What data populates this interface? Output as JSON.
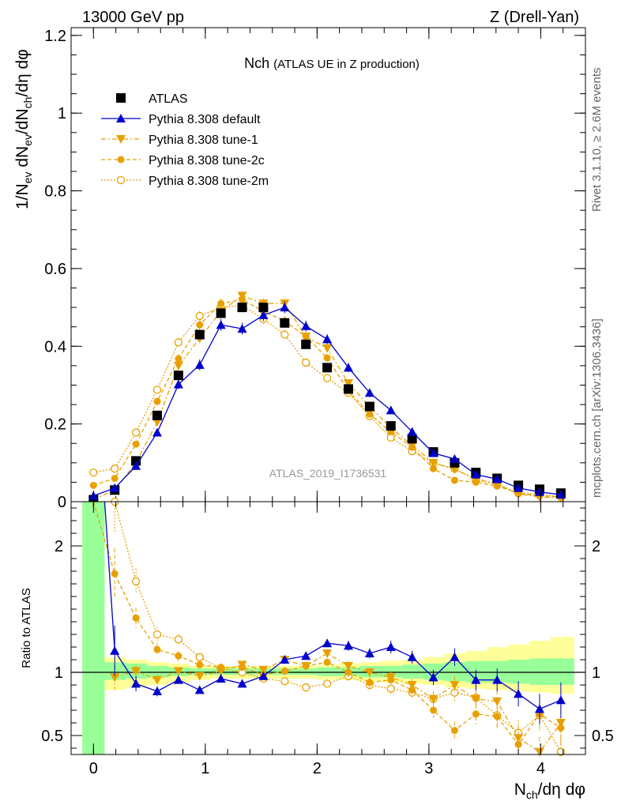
{
  "header": {
    "left": "13000 GeV pp",
    "right": "Z (Drell-Yan)"
  },
  "side_labels": {
    "rivet": "Rivet 3.1.10, ≥ 2.6M events",
    "mcplots": "mcplots.cern.ch [arXiv:1306.3436]"
  },
  "colors": {
    "atlas": "#000000",
    "default": "#0000cc",
    "tunes": "#e8a000",
    "band_inner": "#99ff99",
    "band_outer": "#ffff99"
  },
  "chart_data": [
    {
      "type": "line",
      "title": "Nch",
      "subtitle": "(ATLAS UE in Z production)",
      "watermark": "ATLAS_2019_I1736531",
      "ylabel": {
        "base": "1/N",
        "sub1": "ev",
        "mid": " dN",
        "sub2": "ev",
        "mid2": "/dN",
        "sub3": "ch",
        "tail": "/dη dφ"
      },
      "xlim": [
        -0.2,
        4.4
      ],
      "ylim": [
        0,
        1.22
      ],
      "y_ticks": [
        0,
        0.2,
        0.4,
        0.6,
        0.8,
        1,
        1.2
      ],
      "y_tick_labels": [
        "0",
        "0.2",
        "0.4",
        "0.6",
        "0.8",
        "1",
        "1.2"
      ],
      "x": [
        0.0,
        0.19,
        0.38,
        0.57,
        0.76,
        0.95,
        1.14,
        1.33,
        1.52,
        1.71,
        1.9,
        2.09,
        2.28,
        2.47,
        2.66,
        2.85,
        3.04,
        3.23,
        3.42,
        3.61,
        3.8,
        3.99,
        4.18
      ],
      "series": [
        {
          "name": "ATLAS",
          "style": "atlas",
          "values": [
            0.005,
            0.03,
            0.105,
            0.222,
            0.325,
            0.43,
            0.485,
            0.5,
            0.5,
            0.46,
            0.405,
            0.345,
            0.29,
            0.245,
            0.195,
            0.162,
            0.128,
            0.1,
            0.075,
            0.06,
            0.042,
            0.032,
            0.022
          ],
          "errors": [
            0.003,
            0.004,
            0.006,
            0.008,
            0.01,
            0.012,
            0.012,
            0.012,
            0.012,
            0.012,
            0.011,
            0.01,
            0.009,
            0.008,
            0.007,
            0.006,
            0.005,
            0.005,
            0.004,
            0.004,
            0.003,
            0.003,
            0.003
          ]
        },
        {
          "name": "Pythia 8.308 default",
          "style": "default",
          "values": [
            0.015,
            0.035,
            0.092,
            0.178,
            0.302,
            0.352,
            0.455,
            0.445,
            0.48,
            0.5,
            0.452,
            0.418,
            0.345,
            0.28,
            0.235,
            0.18,
            0.125,
            0.11,
            0.07,
            0.058,
            0.035,
            0.025,
            0.018
          ],
          "errors": [
            0.003,
            0.005,
            0.008,
            0.01,
            0.012,
            0.014,
            0.015,
            0.015,
            0.015,
            0.015,
            0.014,
            0.013,
            0.012,
            0.011,
            0.009,
            0.008,
            0.007,
            0.006,
            0.005,
            0.004,
            0.004,
            0.003,
            0.003
          ]
        },
        {
          "name": "Pythia 8.308 tune-1",
          "style": "tune1",
          "values": [
            0.005,
            0.03,
            0.1,
            0.205,
            0.35,
            0.42,
            0.49,
            0.53,
            0.51,
            0.51,
            0.425,
            0.395,
            0.305,
            0.245,
            0.19,
            0.145,
            0.1,
            0.083,
            0.06,
            0.045,
            0.02,
            0.012,
            0.01
          ],
          "errors": [
            0.003,
            0.004,
            0.007,
            0.009,
            0.011,
            0.013,
            0.013,
            0.013,
            0.013,
            0.012,
            0.011,
            0.01,
            0.009,
            0.008,
            0.007,
            0.006,
            0.005,
            0.005,
            0.004,
            0.003,
            0.003,
            0.003,
            0.002
          ]
        },
        {
          "name": "Pythia 8.308 tune-2c",
          "style": "tune2c",
          "values": [
            0.042,
            0.06,
            0.148,
            0.258,
            0.368,
            0.455,
            0.51,
            0.52,
            0.49,
            0.465,
            0.425,
            0.37,
            0.285,
            0.225,
            0.18,
            0.14,
            0.085,
            0.055,
            0.05,
            0.04,
            0.022,
            0.015,
            0.012
          ],
          "errors": [
            0.004,
            0.005,
            0.008,
            0.01,
            0.012,
            0.013,
            0.013,
            0.013,
            0.013,
            0.012,
            0.011,
            0.01,
            0.009,
            0.008,
            0.007,
            0.006,
            0.005,
            0.005,
            0.004,
            0.004,
            0.003,
            0.003,
            0.003
          ]
        },
        {
          "name": "Pythia 8.308 tune-2m",
          "style": "tune2m",
          "values": [
            0.075,
            0.085,
            0.178,
            0.288,
            0.41,
            0.478,
            0.5,
            0.505,
            0.47,
            0.43,
            0.358,
            0.318,
            0.28,
            0.22,
            0.165,
            0.13,
            0.1,
            0.085,
            0.055,
            0.045,
            0.022,
            0.02,
            0.012
          ],
          "errors": [
            0.005,
            0.006,
            0.008,
            0.01,
            0.012,
            0.013,
            0.013,
            0.013,
            0.013,
            0.012,
            0.011,
            0.01,
            0.009,
            0.008,
            0.007,
            0.006,
            0.005,
            0.005,
            0.004,
            0.004,
            0.003,
            0.003,
            0.003
          ]
        }
      ]
    },
    {
      "type": "line",
      "ylabel": "Ratio to ATLAS",
      "xlabel": {
        "base": "N",
        "sub": "ch",
        "tail": "/dη dφ"
      },
      "xlim": [
        -0.2,
        4.4
      ],
      "ylim": [
        0.35,
        2.35
      ],
      "x_ticks": [
        0,
        1,
        2,
        3,
        4
      ],
      "x_tick_labels": [
        "0",
        "1",
        "2",
        "3",
        "4"
      ],
      "y_ticks": [
        0.5,
        1,
        2
      ],
      "y_tick_labels": [
        "0.5",
        "1",
        "2"
      ],
      "reference": 1,
      "band_edges": [
        -0.1,
        0.1,
        0.29,
        0.48,
        0.67,
        0.86,
        1.05,
        1.24,
        1.43,
        1.62,
        1.81,
        2.0,
        2.19,
        2.38,
        2.57,
        2.76,
        2.95,
        3.14,
        3.33,
        3.52,
        3.71,
        3.9,
        4.09,
        4.3
      ],
      "band_inner": [
        [
          0.3,
          2.4
        ],
        [
          0.94,
          1.08
        ],
        [
          0.95,
          1.07
        ],
        [
          0.96,
          1.05
        ],
        [
          0.97,
          1.04
        ],
        [
          0.98,
          1.03
        ],
        [
          0.98,
          1.03
        ],
        [
          0.98,
          1.03
        ],
        [
          0.98,
          1.03
        ],
        [
          0.98,
          1.03
        ],
        [
          0.98,
          1.03
        ],
        [
          0.97,
          1.04
        ],
        [
          0.97,
          1.04
        ],
        [
          0.96,
          1.05
        ],
        [
          0.96,
          1.05
        ],
        [
          0.95,
          1.06
        ],
        [
          0.94,
          1.07
        ],
        [
          0.93,
          1.08
        ],
        [
          0.92,
          1.09
        ],
        [
          0.92,
          1.09
        ],
        [
          0.91,
          1.1
        ],
        [
          0.9,
          1.11
        ],
        [
          0.9,
          1.11
        ]
      ],
      "band_outer": [
        [
          0.3,
          2.4
        ],
        [
          0.86,
          1.12
        ],
        [
          0.88,
          1.1
        ],
        [
          0.9,
          1.08
        ],
        [
          0.92,
          1.07
        ],
        [
          0.94,
          1.05
        ],
        [
          0.95,
          1.05
        ],
        [
          0.95,
          1.05
        ],
        [
          0.95,
          1.05
        ],
        [
          0.95,
          1.05
        ],
        [
          0.95,
          1.05
        ],
        [
          0.94,
          1.06
        ],
        [
          0.94,
          1.07
        ],
        [
          0.93,
          1.08
        ],
        [
          0.92,
          1.09
        ],
        [
          0.91,
          1.1
        ],
        [
          0.9,
          1.12
        ],
        [
          0.88,
          1.15
        ],
        [
          0.87,
          1.17
        ],
        [
          0.86,
          1.2
        ],
        [
          0.85,
          1.22
        ],
        [
          0.84,
          1.25
        ],
        [
          0.83,
          1.28
        ]
      ],
      "x": [
        0.19,
        0.38,
        0.57,
        0.76,
        0.95,
        1.14,
        1.33,
        1.52,
        1.71,
        1.9,
        2.09,
        2.28,
        2.47,
        2.66,
        2.85,
        3.04,
        3.23,
        3.42,
        3.61,
        3.8,
        3.99,
        4.18
      ],
      "series": [
        {
          "name": "Pythia 8.308 default",
          "style": "default",
          "values": [
            1.17,
            0.91,
            0.85,
            0.94,
            0.86,
            0.95,
            0.91,
            0.97,
            1.1,
            1.13,
            1.23,
            1.21,
            1.15,
            1.2,
            1.12,
            0.96,
            1.12,
            0.94,
            0.94,
            0.83,
            0.71,
            0.78
          ],
          "errors": [
            0.2,
            0.06,
            0.04,
            0.03,
            0.03,
            0.03,
            0.03,
            0.03,
            0.03,
            0.03,
            0.03,
            0.04,
            0.04,
            0.05,
            0.05,
            0.06,
            0.07,
            0.08,
            0.09,
            0.1,
            0.12,
            0.14
          ],
          "lead_in": [
            0.1,
            2.35
          ]
        },
        {
          "name": "Pythia 8.308 tune-1",
          "style": "tune1",
          "values": [
            0.96,
            1.01,
            0.94,
            1.01,
            0.97,
            1.01,
            1.06,
            1.02,
            1.1,
            1.05,
            1.15,
            1.05,
            1.0,
            0.96,
            0.9,
            0.79,
            0.9,
            0.79,
            0.77,
            0.48,
            0.37,
            0.6
          ],
          "errors": [
            0.1,
            0.05,
            0.04,
            0.03,
            0.03,
            0.03,
            0.03,
            0.03,
            0.03,
            0.03,
            0.03,
            0.04,
            0.04,
            0.05,
            0.05,
            0.06,
            0.07,
            0.08,
            0.09,
            0.1,
            0.12,
            0.14
          ]
        },
        {
          "name": "Pythia 8.308 tune-2c",
          "style": "tune2c",
          "values": [
            1.78,
            1.43,
            1.18,
            1.13,
            1.06,
            1.04,
            1.04,
            0.98,
            1.01,
            1.05,
            1.08,
            1.0,
            0.92,
            0.94,
            0.86,
            0.7,
            0.54,
            0.67,
            0.65,
            0.43,
            0.67,
            0.56
          ],
          "errors": [
            0.2,
            0.08,
            0.05,
            0.04,
            0.03,
            0.03,
            0.03,
            0.03,
            0.03,
            0.03,
            0.03,
            0.04,
            0.04,
            0.05,
            0.05,
            0.06,
            0.07,
            0.08,
            0.09,
            0.1,
            0.12,
            0.14
          ],
          "lead_in": [
            0.0,
            2.4
          ]
        },
        {
          "name": "Pythia 8.308 tune-2m",
          "style": "tune2m",
          "values": [
            2.35,
            1.72,
            1.3,
            1.26,
            1.12,
            1.03,
            1.0,
            0.95,
            0.93,
            0.88,
            0.91,
            0.97,
            0.9,
            0.87,
            0.84,
            0.79,
            0.84,
            0.8,
            0.66,
            0.52,
            0.66,
            0.37
          ],
          "errors": [
            0.25,
            0.1,
            0.06,
            0.04,
            0.03,
            0.03,
            0.03,
            0.03,
            0.03,
            0.03,
            0.03,
            0.04,
            0.04,
            0.05,
            0.05,
            0.06,
            0.07,
            0.08,
            0.09,
            0.1,
            0.12,
            0.14
          ]
        }
      ]
    }
  ]
}
